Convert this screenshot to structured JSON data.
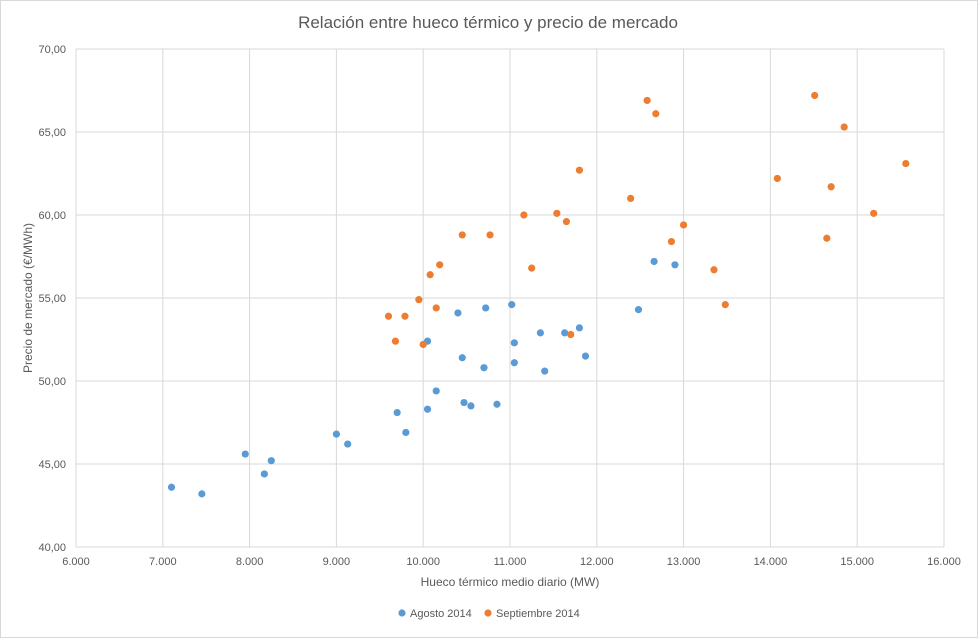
{
  "chart_data": {
    "type": "scatter",
    "title": "Relación entre hueco térmico y precio de mercado",
    "xlabel": "Hueco térmico medio diario (MW)",
    "ylabel": "Precio de mercado (€/MWh)",
    "xlim": [
      6000,
      16000
    ],
    "ylim": [
      40,
      70
    ],
    "x_ticks": [
      6000,
      7000,
      8000,
      9000,
      10000,
      11000,
      12000,
      13000,
      14000,
      15000,
      16000
    ],
    "x_tick_labels": [
      "6.000",
      "7.000",
      "8.000",
      "9.000",
      "10.000",
      "11.000",
      "12.000",
      "13.000",
      "14.000",
      "15.000",
      "16.000"
    ],
    "y_ticks": [
      40,
      45,
      50,
      55,
      60,
      65,
      70
    ],
    "y_tick_labels": [
      "40,00",
      "45,00",
      "50,00",
      "55,00",
      "60,00",
      "65,00",
      "70,00"
    ],
    "grid": true,
    "legend_position": "bottom",
    "series": [
      {
        "name": "Agosto 2014",
        "color": "#5b9bd5",
        "points": [
          [
            7100,
            43.6
          ],
          [
            7450,
            43.2
          ],
          [
            7950,
            45.6
          ],
          [
            8250,
            45.2
          ],
          [
            8170,
            44.4
          ],
          [
            9000,
            46.8
          ],
          [
            9130,
            46.2
          ],
          [
            9700,
            48.1
          ],
          [
            9800,
            46.9
          ],
          [
            10050,
            48.3
          ],
          [
            10150,
            49.4
          ],
          [
            10470,
            48.7
          ],
          [
            10550,
            48.5
          ],
          [
            10850,
            48.6
          ],
          [
            10050,
            52.4
          ],
          [
            10400,
            54.1
          ],
          [
            10450,
            51.4
          ],
          [
            10700,
            50.8
          ],
          [
            10720,
            54.4
          ],
          [
            11050,
            51.1
          ],
          [
            11050,
            52.3
          ],
          [
            11020,
            54.6
          ],
          [
            11350,
            52.9
          ],
          [
            11400,
            50.6
          ],
          [
            11630,
            52.9
          ],
          [
            11800,
            53.2
          ],
          [
            11870,
            51.5
          ],
          [
            12480,
            54.3
          ],
          [
            12660,
            57.2
          ],
          [
            12900,
            57.0
          ]
        ]
      },
      {
        "name": "Septiembre 2014",
        "color": "#ed7d31",
        "points": [
          [
            9600,
            53.9
          ],
          [
            9680,
            52.4
          ],
          [
            9790,
            53.9
          ],
          [
            9950,
            54.9
          ],
          [
            10000,
            52.2
          ],
          [
            10080,
            56.4
          ],
          [
            10150,
            54.4
          ],
          [
            10190,
            57.0
          ],
          [
            10450,
            58.8
          ],
          [
            10770,
            58.8
          ],
          [
            11160,
            60.0
          ],
          [
            11250,
            56.8
          ],
          [
            11540,
            60.1
          ],
          [
            11650,
            59.6
          ],
          [
            11700,
            52.8
          ],
          [
            11800,
            62.7
          ],
          [
            12390,
            61.0
          ],
          [
            12580,
            66.9
          ],
          [
            12680,
            66.1
          ],
          [
            12860,
            58.4
          ],
          [
            13000,
            59.4
          ],
          [
            13350,
            56.7
          ],
          [
            13480,
            54.6
          ],
          [
            14080,
            62.2
          ],
          [
            14510,
            67.2
          ],
          [
            14650,
            58.6
          ],
          [
            14700,
            61.7
          ],
          [
            14850,
            65.3
          ],
          [
            15190,
            60.1
          ],
          [
            15560,
            63.1
          ]
        ]
      }
    ]
  }
}
